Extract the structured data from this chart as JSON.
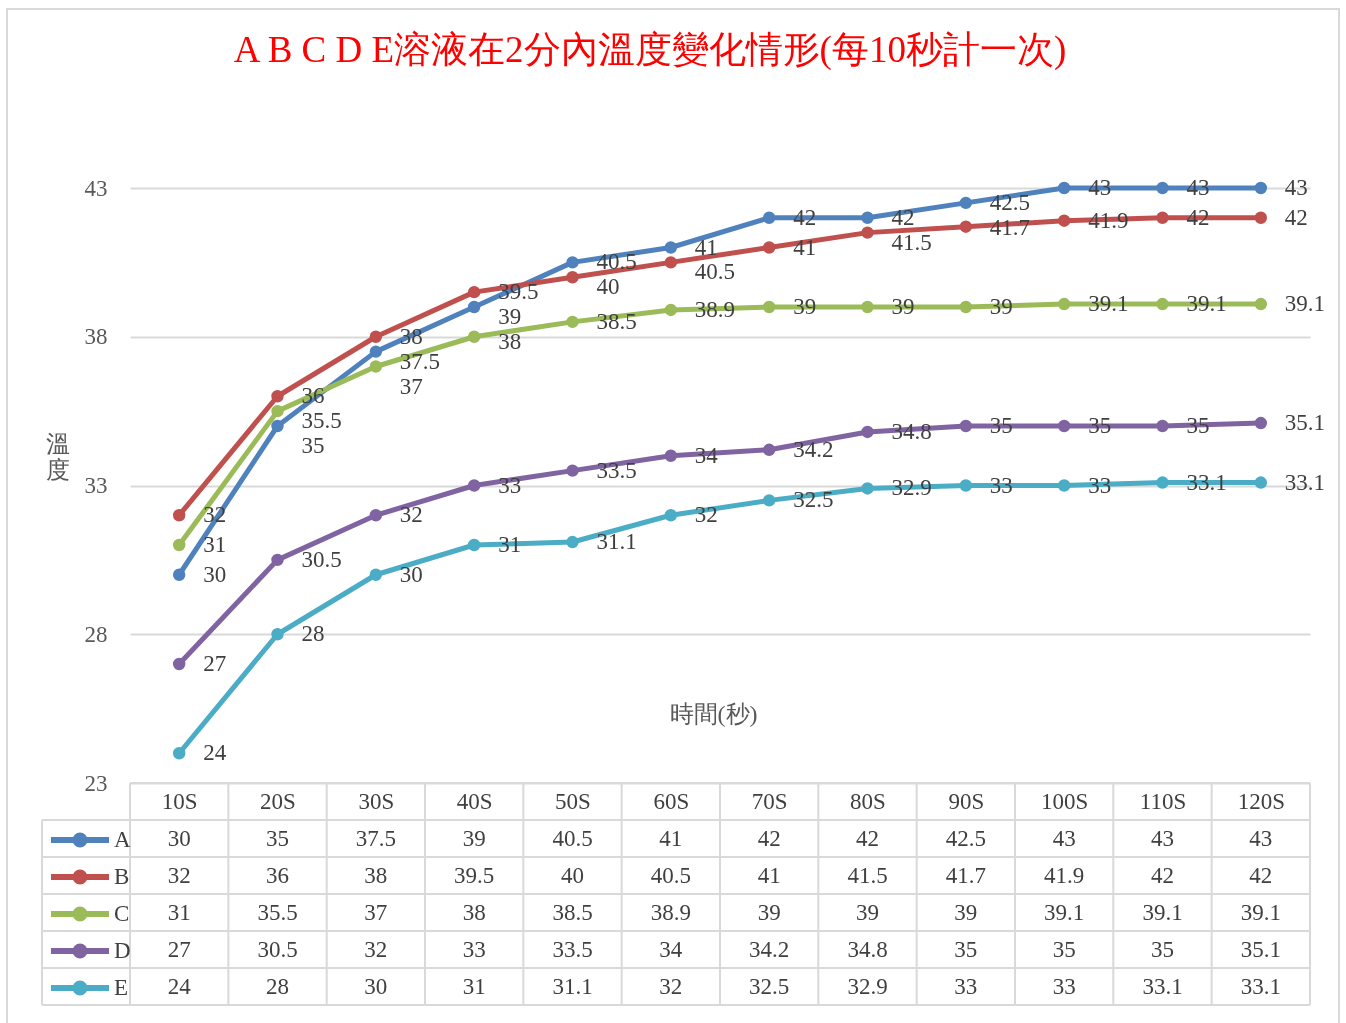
{
  "chart_data": {
    "type": "line",
    "title": "A B C D E溶液在2分內溫度變化情形(每10秒計一次)",
    "xlabel": "時間(秒)",
    "ylabel": "溫度",
    "categories": [
      "10S",
      "20S",
      "30S",
      "40S",
      "50S",
      "60S",
      "70S",
      "80S",
      "90S",
      "100S",
      "110S",
      "120S"
    ],
    "series": [
      {
        "name": "A",
        "color": "#4f81bd",
        "values": [
          30,
          35,
          37.5,
          39,
          40.5,
          41,
          42,
          42,
          42.5,
          43,
          43,
          43
        ]
      },
      {
        "name": "B",
        "color": "#c0504d",
        "values": [
          32,
          36,
          38,
          39.5,
          40,
          40.5,
          41,
          41.5,
          41.7,
          41.9,
          42,
          42
        ]
      },
      {
        "name": "C",
        "color": "#9bbb59",
        "values": [
          31,
          35.5,
          37,
          38,
          38.5,
          38.9,
          39,
          39,
          39,
          39.1,
          39.1,
          39.1
        ]
      },
      {
        "name": "D",
        "color": "#8064a2",
        "values": [
          27,
          30.5,
          32,
          33,
          33.5,
          34,
          34.2,
          34.8,
          35,
          35,
          35,
          35.1
        ]
      },
      {
        "name": "E",
        "color": "#4bacc6",
        "values": [
          24,
          28,
          30,
          31,
          31.1,
          32,
          32.5,
          32.9,
          33,
          33,
          33.1,
          33.1
        ]
      }
    ],
    "annotations": [
      {
        "text": "30",
        "x": "10S",
        "y": 30
      },
      {
        "text": "35",
        "x": "20S",
        "y": 35
      },
      {
        "text": "37.5",
        "x": "30S",
        "y": 37.5
      },
      {
        "text": "39",
        "x": "40S",
        "y": 39
      },
      {
        "text": "40.5",
        "x": "50S",
        "y": 40.5
      },
      {
        "text": "41",
        "x": "60S",
        "y": 41
      },
      {
        "text": "42",
        "x": "70S",
        "y": 42
      },
      {
        "text": "42",
        "x": "80S",
        "y": 42
      },
      {
        "text": "42.5",
        "x": "90S",
        "y": 42.5
      },
      {
        "text": "43",
        "x": "100S",
        "y": 43
      },
      {
        "text": "43",
        "x": "110S",
        "y": 43
      },
      {
        "text": "43",
        "x": "120S",
        "y": 43
      },
      {
        "text": "32",
        "x": "10S",
        "y": 32
      },
      {
        "text": "36",
        "x": "20S",
        "y": 36
      },
      {
        "text": "38",
        "x": "30S",
        "y": 38
      },
      {
        "text": "39.5",
        "x": "40S",
        "y": 39.5
      },
      {
        "text": "40",
        "x": "50S",
        "y": 40
      },
      {
        "text": "40.5",
        "x": "60S",
        "y": 40.5
      },
      {
        "text": "41",
        "x": "70S",
        "y": 41
      },
      {
        "text": "41.5",
        "x": "80S",
        "y": 41.5
      },
      {
        "text": "41.7",
        "x": "90S",
        "y": 41.7
      },
      {
        "text": "41.9",
        "x": "100S",
        "y": 41.9
      },
      {
        "text": "42",
        "x": "110S",
        "y": 42
      },
      {
        "text": "42",
        "x": "120S",
        "y": 42
      },
      {
        "text": "31",
        "x": "10S",
        "y": 31
      },
      {
        "text": "35.5",
        "x": "20S",
        "y": 35.5
      },
      {
        "text": "37",
        "x": "30S",
        "y": 37
      },
      {
        "text": "38",
        "x": "40S",
        "y": 38
      },
      {
        "text": "38.5",
        "x": "50S",
        "y": 38.5
      },
      {
        "text": "38.9",
        "x": "60S",
        "y": 38.9
      },
      {
        "text": "39",
        "x": "70S",
        "y": 39
      },
      {
        "text": "39",
        "x": "80S",
        "y": 39
      },
      {
        "text": "39",
        "x": "90S",
        "y": 39
      },
      {
        "text": "39.1",
        "x": "100S",
        "y": 39.1
      },
      {
        "text": "39.1",
        "x": "110S",
        "y": 39.1
      },
      {
        "text": "39.1",
        "x": "120S",
        "y": 39.1
      },
      {
        "text": "27",
        "x": "10S",
        "y": 27
      },
      {
        "text": "30.5",
        "x": "20S",
        "y": 30.5
      },
      {
        "text": "32",
        "x": "30S",
        "y": 32
      },
      {
        "text": "33",
        "x": "40S",
        "y": 33
      },
      {
        "text": "33.5",
        "x": "50S",
        "y": 33.5
      },
      {
        "text": "34",
        "x": "60S",
        "y": 34
      },
      {
        "text": "34.2",
        "x": "70S",
        "y": 34.2
      },
      {
        "text": "34.8",
        "x": "80S",
        "y": 34.8
      },
      {
        "text": "35",
        "x": "90S",
        "y": 35
      },
      {
        "text": "35",
        "x": "100S",
        "y": 35
      },
      {
        "text": "35",
        "x": "110S",
        "y": 35
      },
      {
        "text": "35.1",
        "x": "120S",
        "y": 35.1
      },
      {
        "text": "24",
        "x": "10S",
        "y": 24
      },
      {
        "text": "28",
        "x": "20S",
        "y": 28
      },
      {
        "text": "30",
        "x": "30S",
        "y": 30
      },
      {
        "text": "31",
        "x": "40S",
        "y": 31
      },
      {
        "text": "31.1",
        "x": "50S",
        "y": 31.1
      },
      {
        "text": "32",
        "x": "60S",
        "y": 32
      },
      {
        "text": "32.5",
        "x": "70S",
        "y": 32.5
      },
      {
        "text": "32.9",
        "x": "80S",
        "y": 32.9
      },
      {
        "text": "33",
        "x": "90S",
        "y": 33
      },
      {
        "text": "33",
        "x": "100S",
        "y": 33
      },
      {
        "text": "33.1",
        "x": "110S",
        "y": 33.1
      },
      {
        "text": "33.1",
        "x": "120S",
        "y": 33.1
      }
    ],
    "ylim": [
      23,
      43
    ],
    "yticks": [
      23,
      28,
      33,
      38,
      43
    ],
    "grid": "y",
    "legend": "bottom left",
    "marker": "circle",
    "line_style": "solid",
    "data_labels": true
  }
}
